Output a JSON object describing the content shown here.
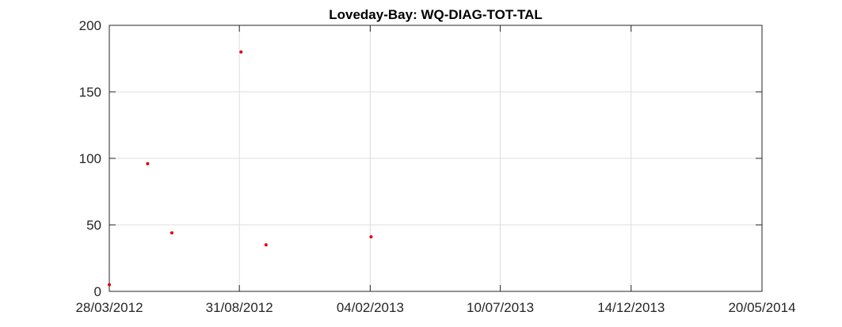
{
  "chart_data": {
    "type": "scatter",
    "title": "Loveday-Bay: WQ-DIAG-TOT-TAL",
    "xlabel": "",
    "ylabel": "",
    "x_axis_type": "date",
    "xlim": [
      "2012-03-28",
      "2014-05-20"
    ],
    "ylim": [
      0,
      200
    ],
    "x_ticks": [
      "2012-03-28",
      "2012-08-31",
      "2013-02-04",
      "2013-07-10",
      "2013-12-14",
      "2014-05-20"
    ],
    "x_tick_labels": [
      "28/03/2012",
      "31/08/2012",
      "04/02/2013",
      "10/07/2013",
      "14/12/2013",
      "20/05/2014"
    ],
    "y_ticks": [
      0,
      50,
      100,
      150,
      200
    ],
    "y_tick_labels": [
      "0",
      "50",
      "100",
      "150",
      "200"
    ],
    "grid": true,
    "marker_color": "#e00000",
    "series": [
      {
        "points": [
          {
            "x": "2012-03-28",
            "y": 5
          },
          {
            "x": "2012-05-13",
            "y": 96
          },
          {
            "x": "2012-06-11",
            "y": 44
          },
          {
            "x": "2012-09-02",
            "y": 180
          },
          {
            "x": "2012-10-02",
            "y": 35
          },
          {
            "x": "2013-02-05",
            "y": 41
          }
        ]
      }
    ]
  }
}
